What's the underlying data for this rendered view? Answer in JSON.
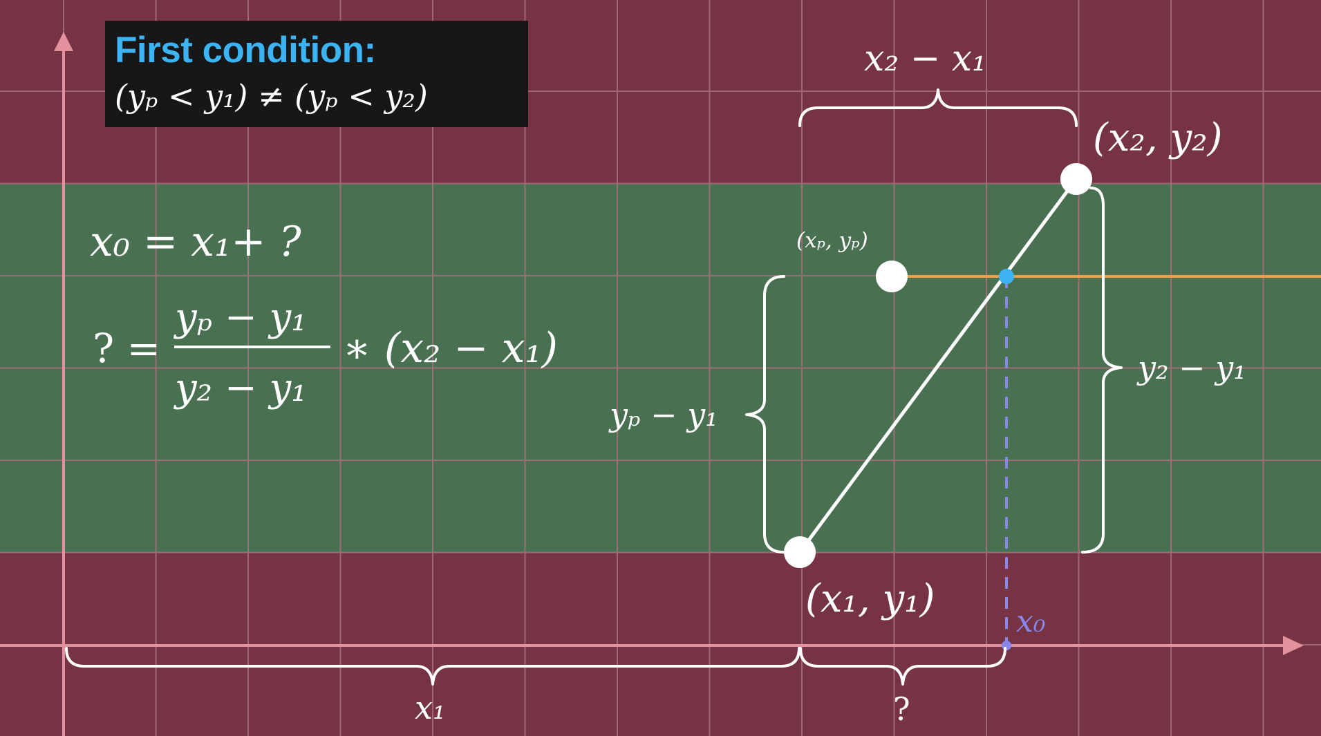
{
  "colors": {
    "outside_band": "#763344",
    "inside_band": "#4a7052",
    "grid": "#a9707c",
    "axis": "#e3919e",
    "ray": "#f0a048",
    "intersection_dot": "#3cb4f4",
    "x0_marker": "#8a87ea",
    "title_accent": "#3cb4f4",
    "title_box": "#171717"
  },
  "title": {
    "heading": "First condition:",
    "formula": "(yₚ < y₁) ≠ (yₚ < y₂)"
  },
  "equations": {
    "line1": "x₀ = x₁+ ?",
    "lhs": "? =",
    "numerator": "yₚ − y₁",
    "denominator": "y₂ − y₁",
    "rhs": "∗ (x₂ − x₁)"
  },
  "points": {
    "p1_label": "(x₁, y₁)",
    "p2_label": "(x₂, y₂)",
    "pp_label": "(xₚ, yₚ)"
  },
  "braces": {
    "top": "x₂ − x₁",
    "right": "y₂ − y₁",
    "left": "yₚ − y₁",
    "bottom_left": "x₁",
    "bottom_right": "?"
  },
  "marker": {
    "x0_label": "x₀"
  },
  "icons": {
    "axis_arrow_up": "arrow-up-icon",
    "axis_arrow_right": "arrow-right-icon"
  }
}
